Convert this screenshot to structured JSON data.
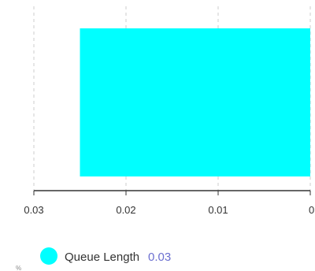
{
  "chart_data": {
    "type": "bar",
    "orientation": "horizontal",
    "x_reversed": true,
    "xlim": [
      0,
      0.03
    ],
    "ticks": [
      0.03,
      0.02,
      0.01,
      0
    ],
    "tick_labels": [
      "0.03",
      "0.02",
      "0.01",
      "0"
    ],
    "grid": true,
    "legend_position": "bottom-left",
    "series": [
      {
        "name": "Queue Length",
        "values": [
          0.025
        ]
      }
    ]
  },
  "legend": {
    "label": "Queue Length",
    "value": "0.03"
  },
  "colors": {
    "bar": "#00ffff",
    "axis": "#333333",
    "grid": "#cccccc",
    "legend_value": "#6b6fd0"
  },
  "stray_mark": "%"
}
